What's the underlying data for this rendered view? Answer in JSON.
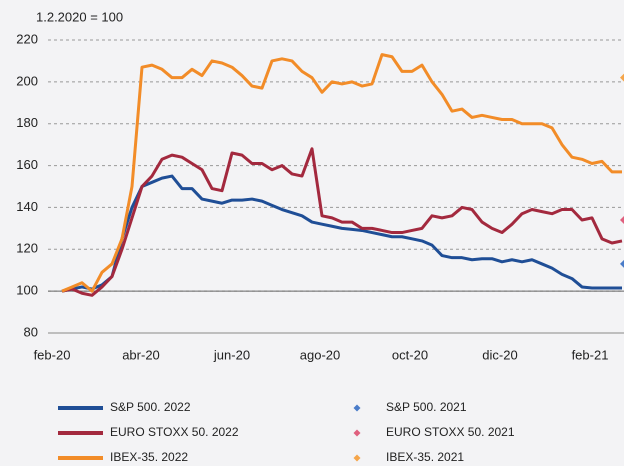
{
  "chart_data": {
    "type": "line",
    "annotation": "1.2.2020 = 100",
    "x": [
      0,
      1,
      2,
      3,
      4,
      5,
      6,
      7,
      8,
      9,
      10,
      11,
      12,
      13,
      14,
      15,
      16,
      17,
      18,
      19,
      20,
      21,
      22,
      23,
      24,
      25,
      26,
      27,
      28,
      29,
      30,
      31,
      32,
      33,
      34,
      35,
      36,
      37,
      38,
      39,
      40,
      41,
      42,
      43,
      44,
      45,
      46,
      47,
      48,
      49,
      50,
      51,
      52,
      53,
      54,
      55,
      56
    ],
    "xlim": [
      0,
      56.2
    ],
    "xticks": [
      {
        "value": -1,
        "label": "feb-20"
      },
      {
        "value": 7.9,
        "label": "abr-20"
      },
      {
        "value": 17,
        "label": "jun-20"
      },
      {
        "value": 25.8,
        "label": "ago-20"
      },
      {
        "value": 34.8,
        "label": "oct-20"
      },
      {
        "value": 43.8,
        "label": "dic-20"
      },
      {
        "value": 52.8,
        "label": "feb-21"
      }
    ],
    "ylim": [
      80,
      220
    ],
    "yticks": [
      80,
      100,
      120,
      140,
      160,
      180,
      200,
      220
    ],
    "grid": true,
    "baseline": 100,
    "series": [
      {
        "name": "S&P 500. 2022",
        "color": "#1f4e96",
        "style": "line",
        "values": [
          100,
          101,
          102,
          101,
          103,
          107,
          125,
          140,
          150,
          152,
          154,
          155,
          149,
          149,
          144,
          143,
          142,
          143.5,
          143.5,
          144,
          143,
          141,
          139,
          137.5,
          136,
          133,
          132,
          131,
          130,
          129.5,
          129,
          128,
          127,
          126,
          126,
          125,
          124,
          122,
          117,
          116,
          116,
          115,
          115.5,
          115.5,
          114,
          115,
          114,
          115,
          113,
          111,
          108,
          106,
          102,
          101.5,
          101.5,
          101.5,
          101.5
        ]
      },
      {
        "name": "EURO STOXX 50. 2022",
        "color": "#a3293e",
        "style": "line",
        "values": [
          100,
          101,
          99,
          98,
          102,
          107,
          120,
          135,
          150,
          155,
          163,
          165,
          164,
          161,
          158,
          149,
          148,
          166,
          165,
          161,
          161,
          158,
          160,
          156,
          155,
          168,
          136,
          135,
          133,
          133,
          130,
          130,
          129,
          128,
          128,
          129,
          130,
          136,
          135,
          136,
          140,
          139,
          133,
          130,
          128,
          132,
          137,
          139,
          138,
          137,
          139,
          139,
          134,
          135,
          125,
          123,
          124
        ]
      },
      {
        "name": "IBEX-35. 2022",
        "color": "#f28c28",
        "style": "line",
        "values": [
          100,
          102,
          104,
          100,
          109,
          113,
          125,
          150,
          207,
          208,
          206,
          202,
          202,
          206,
          203,
          210,
          209,
          207,
          203,
          198,
          197,
          210,
          211,
          210,
          205,
          202,
          195,
          200,
          199,
          200,
          198,
          199,
          213,
          212,
          205,
          205,
          208,
          200,
          194,
          186,
          187,
          183,
          184,
          183,
          182,
          182,
          180,
          180,
          180,
          178,
          170,
          164,
          163,
          161,
          162,
          157,
          157
        ]
      },
      {
        "name": "S&P 500. 2021",
        "color": "#4a7cc9",
        "style": "marker",
        "x": [
          56.2
        ],
        "values": [
          113
        ]
      },
      {
        "name": "EURO STOXX 50. 2021",
        "color": "#e0607e",
        "style": "marker",
        "x": [
          56.2
        ],
        "values": [
          134
        ]
      },
      {
        "name": "IBEX-35. 2021",
        "color": "#f5a54a",
        "style": "marker",
        "x": [
          56.2
        ],
        "values": [
          202
        ]
      }
    ]
  }
}
